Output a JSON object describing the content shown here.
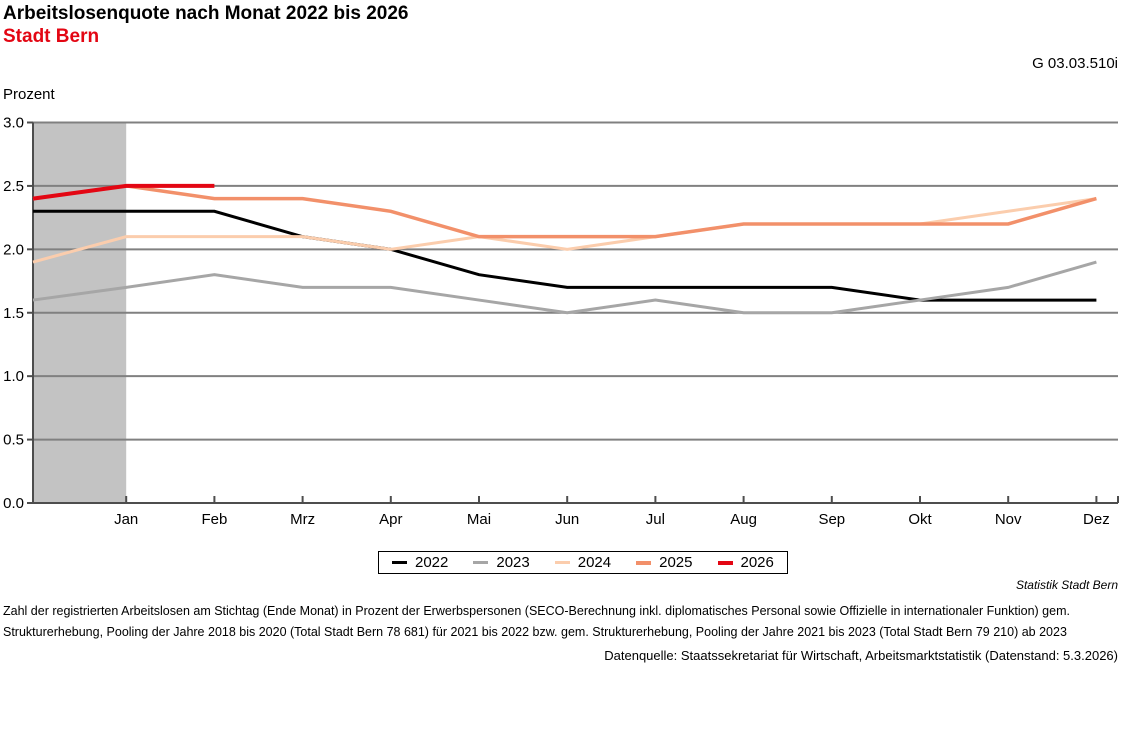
{
  "header": {
    "title": "Arbeitslosenquote nach Monat 2022 bis 2026",
    "subtitle": "Stadt Bern",
    "ref_code": "G 03.03.510i"
  },
  "chart_data": {
    "type": "line",
    "title": "Arbeitslosenquote nach Monat 2022 bis 2026",
    "region": "Stadt Bern",
    "ylabel": "Prozent",
    "xlabel": "",
    "ylim": [
      0.0,
      3.0
    ],
    "ytick_step": 0.5,
    "grid": "horizontal",
    "legend_position": "bottom-center",
    "categories": [
      "Jan",
      "Feb",
      "Mrz",
      "Apr",
      "Mai",
      "Jun",
      "Jul",
      "Aug",
      "Sep",
      "Okt",
      "Nov",
      "Dez"
    ],
    "series": [
      {
        "name": "2022",
        "color": "#000000",
        "stroke_width": 3,
        "prev_dec_value": 2.3,
        "values": [
          2.3,
          2.3,
          2.1,
          2.0,
          1.8,
          1.7,
          1.7,
          1.7,
          1.7,
          1.6,
          1.6,
          1.6
        ]
      },
      {
        "name": "2023",
        "color": "#a6a6a6",
        "stroke_width": 3,
        "prev_dec_value": 1.6,
        "values": [
          1.7,
          1.8,
          1.7,
          1.7,
          1.6,
          1.5,
          1.6,
          1.5,
          1.5,
          1.6,
          1.7,
          1.9
        ]
      },
      {
        "name": "2024",
        "color": "#fbcdad",
        "stroke_width": 3,
        "prev_dec_value": 1.9,
        "values": [
          2.1,
          2.1,
          2.1,
          2.0,
          2.1,
          2.0,
          2.1,
          2.2,
          2.2,
          2.2,
          2.3,
          2.4
        ]
      },
      {
        "name": "2025",
        "color": "#f2906a",
        "stroke_width": 3.5,
        "prev_dec_value": 2.4,
        "values": [
          2.5,
          2.4,
          2.4,
          2.3,
          2.1,
          2.1,
          2.1,
          2.2,
          2.2,
          2.2,
          2.2,
          2.4
        ]
      },
      {
        "name": "2026",
        "color": "#e30613",
        "stroke_width": 4,
        "prev_dec_value": 2.4,
        "values": [
          2.5,
          2.5,
          null,
          null,
          null,
          null,
          null,
          null,
          null,
          null,
          null,
          null
        ]
      }
    ],
    "highlight_band": {
      "from_month_index": 0,
      "to_month_index": 1,
      "color": "#c3c3c3"
    },
    "colors": {
      "gridline": "#808080",
      "axis": "#4d4d4d",
      "band": "#c3c3c3",
      "accent_red": "#e30613"
    }
  },
  "footer": {
    "source_note": "Statistik Stadt Bern",
    "footnote_lines": [
      "Zahl der registrierten Arbeitslosen am Stichtag (Ende Monat) in Prozent der Erwerbspersonen (SECO-Berechnung inkl. diplomatisches Personal sowie Offizielle in internationaler Funktion) gem.",
      "Strukturerhebung, Pooling der Jahre 2018 bis 2020 (Total Stadt Bern 78 681) für 2021 bis 2022 bzw. gem. Strukturerhebung, Pooling der Jahre 2021 bis 2023 (Total Stadt Bern 79 210) ab 2023"
    ],
    "datasource_line": "Datenquelle: Staatssekretariat für Wirtschaft, Arbeitsmarktstatistik (Datenstand: 5.3.2026)"
  }
}
